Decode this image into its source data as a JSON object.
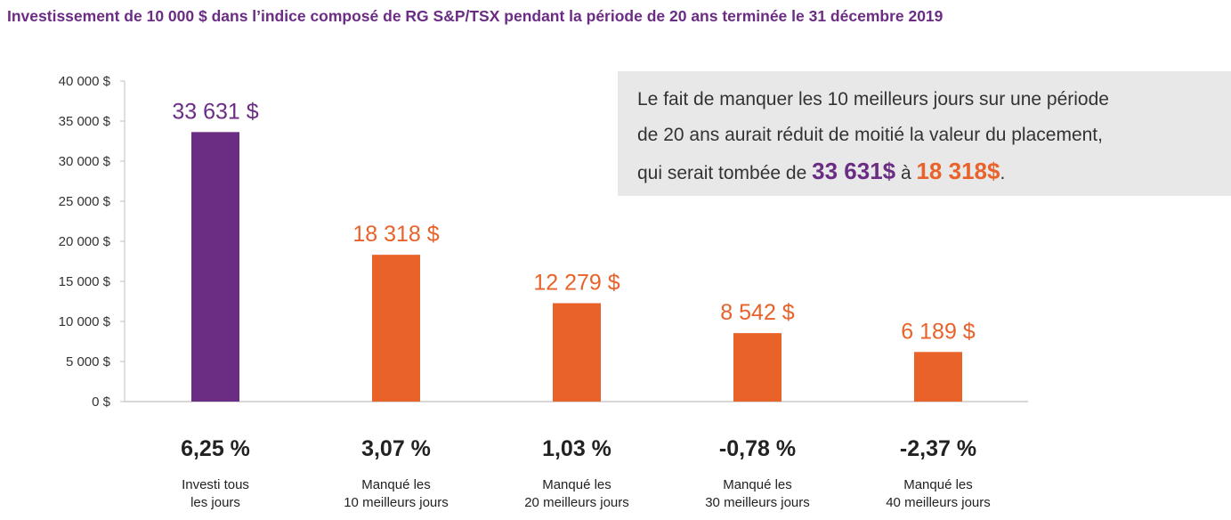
{
  "chart_data": {
    "type": "bar",
    "title": "Investissement de 10 000 $ dans l’indice composé de RG S&P/TSX pendant la période de 20 ans terminée le 31 décembre 2019",
    "ylim": [
      0,
      40000
    ],
    "yticks": [
      {
        "value": 0,
        "label": "0 $"
      },
      {
        "value": 5000,
        "label": "5 000 $"
      },
      {
        "value": 10000,
        "label": "10 000 $"
      },
      {
        "value": 15000,
        "label": "15 000 $"
      },
      {
        "value": 20000,
        "label": "20 000 $"
      },
      {
        "value": 25000,
        "label": "25 000 $"
      },
      {
        "value": 30000,
        "label": "30 000 $"
      },
      {
        "value": 35000,
        "label": "35 000 $"
      },
      {
        "value": 40000,
        "label": "40 000 $"
      }
    ],
    "grid": false,
    "bars": [
      {
        "category_line1": "Investi tous",
        "category_line2": "les jours",
        "value": 33631,
        "value_label": "33 631 $",
        "rate": "6,25 %",
        "color": "#6b2d84"
      },
      {
        "category_line1": "Manqué les",
        "category_line2": "10 meilleurs jours",
        "value": 18318,
        "value_label": "18 318 $",
        "rate": "3,07 %",
        "color": "#e8622a"
      },
      {
        "category_line1": "Manqué les",
        "category_line2": "20 meilleurs jours",
        "value": 12279,
        "value_label": "12 279 $",
        "rate": "1,03 %",
        "color": "#e8622a"
      },
      {
        "category_line1": "Manqué les",
        "category_line2": "30 meilleurs jours",
        "value": 8542,
        "value_label": "8 542 $",
        "rate": "-0,78 %",
        "color": "#e8622a"
      },
      {
        "category_line1": "Manqué les",
        "category_line2": "40 meilleurs jours",
        "value": 6189,
        "value_label": "6 189 $",
        "rate": "-2,37 %",
        "color": "#e8622a"
      }
    ],
    "annotation": {
      "line1": "Le fait de manquer les 10 meilleurs jours sur une période",
      "line2": "de 20 ans aurait réduit de moitié la valeur du placement,",
      "line3_prefix": "qui serait tombée de ",
      "highlight1": "33 631$",
      "middle": " à ",
      "highlight2": "18 318$",
      "suffix": ".",
      "highlight1_color": "#6b2d84",
      "highlight2_color": "#e8622a"
    }
  }
}
